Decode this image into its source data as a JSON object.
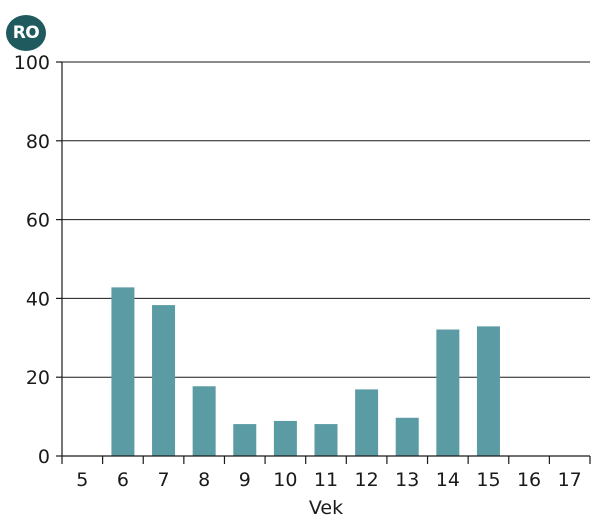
{
  "badge": {
    "label": "RO"
  },
  "chart_data": {
    "type": "bar",
    "title": "",
    "xlabel": "Vek",
    "ylabel": "",
    "categories": [
      "5",
      "6",
      "7",
      "8",
      "9",
      "10",
      "11",
      "12",
      "13",
      "14",
      "15",
      "16",
      "17"
    ],
    "values": [
      0,
      42.8,
      38.3,
      17.7,
      8.1,
      8.9,
      8.1,
      16.9,
      9.7,
      32.1,
      32.9,
      0,
      0
    ],
    "ylim": [
      0,
      100
    ],
    "yticks": [
      0,
      20,
      40,
      60,
      80,
      100
    ],
    "grid": "horizontal",
    "bar_color": "#5b9ba4",
    "axis_color": "#1a1a1a"
  }
}
